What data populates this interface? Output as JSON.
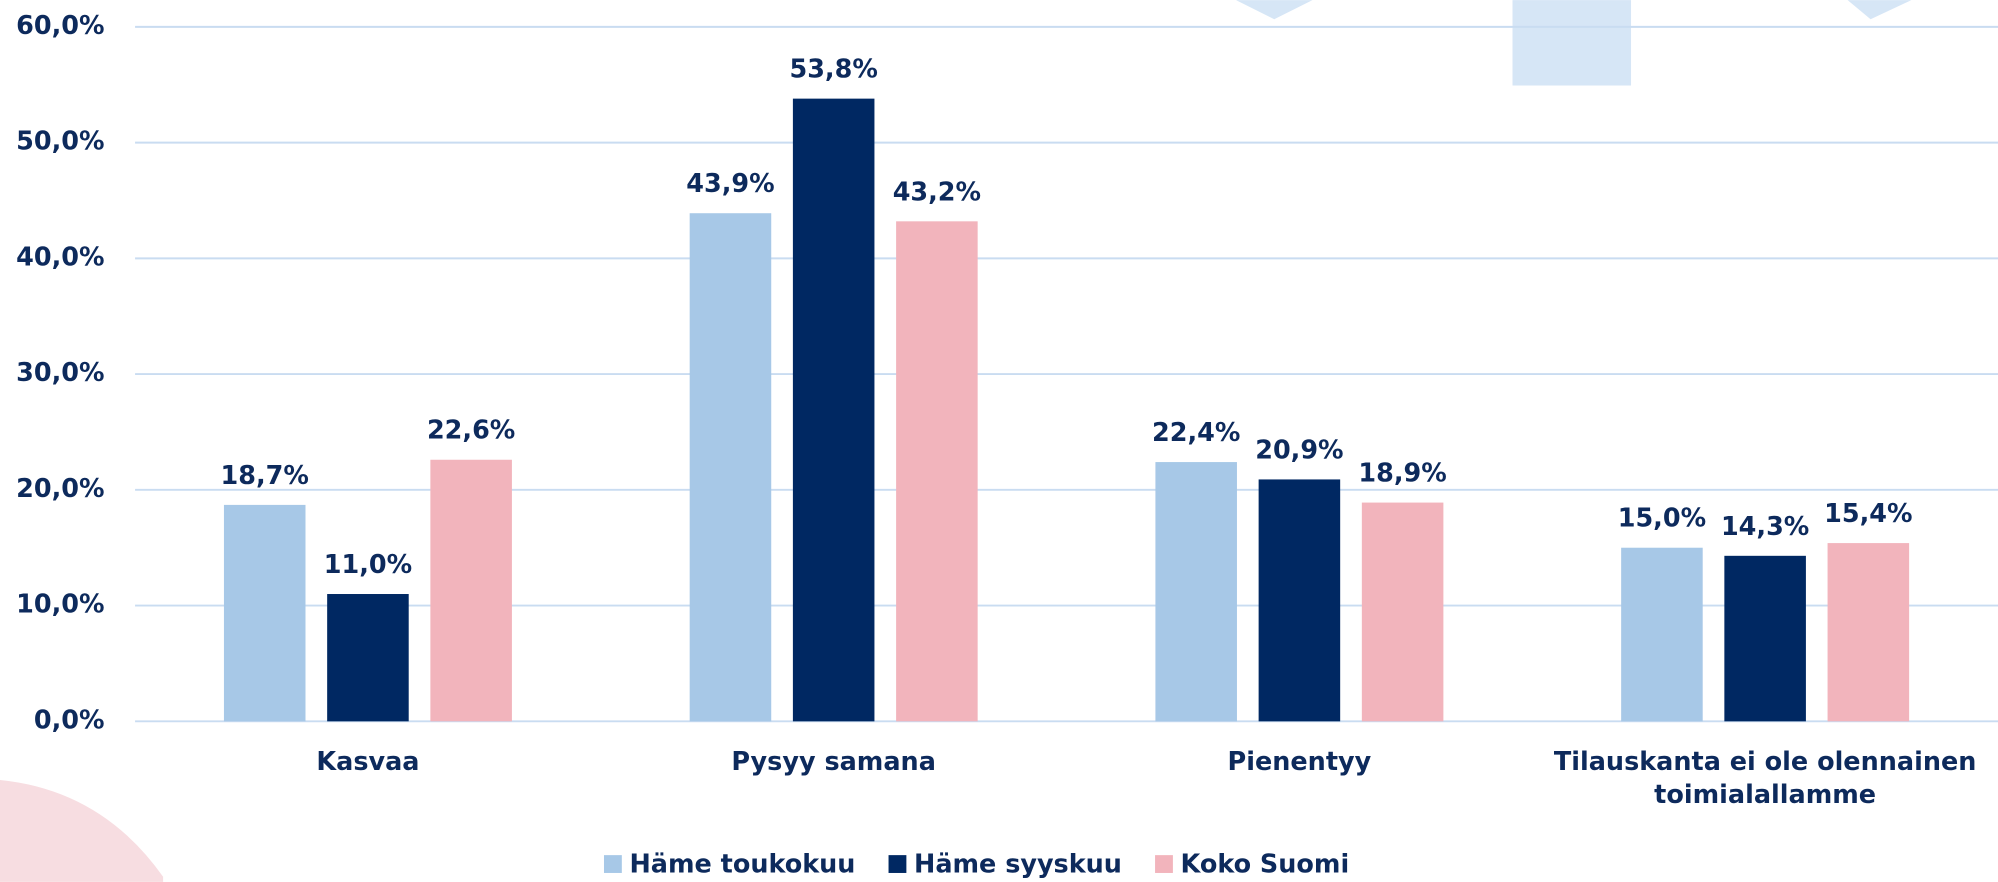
{
  "chart_data": {
    "type": "bar",
    "categories": [
      "Kasvaa",
      "Pysyy samana",
      "Pienentyy",
      "Tilauskanta ei ole olennainen toimialallamme"
    ],
    "series": [
      {
        "name": "Häme toukokuu",
        "color": "#a7c8e7",
        "values": [
          18.7,
          43.9,
          22.4,
          15.0
        ],
        "value_labels": [
          "18,7%",
          "43,9%",
          "22,4%",
          "15,0%"
        ]
      },
      {
        "name": "Häme syyskuu",
        "color": "#002862",
        "values": [
          11.0,
          53.8,
          20.9,
          14.3
        ],
        "value_labels": [
          "11,0%",
          "53,8%",
          "20,9%",
          "14,3%"
        ]
      },
      {
        "name": "Koko Suomi",
        "color": "#f2b4bc",
        "values": [
          22.6,
          43.2,
          18.9,
          15.4
        ],
        "value_labels": [
          "22,6%",
          "43,2%",
          "18,9%",
          "15,4%"
        ]
      }
    ],
    "ylim": [
      0,
      60
    ],
    "yticks": [
      {
        "value": 0,
        "label": "0,0%"
      },
      {
        "value": 10,
        "label": "10,0%"
      },
      {
        "value": 20,
        "label": "20,0%"
      },
      {
        "value": 30,
        "label": "30,0%"
      },
      {
        "value": 40,
        "label": "40,0%"
      },
      {
        "value": 50,
        "label": "50,0%"
      },
      {
        "value": 60,
        "label": "60,0%"
      }
    ],
    "grid": true,
    "legend": "bottom"
  }
}
